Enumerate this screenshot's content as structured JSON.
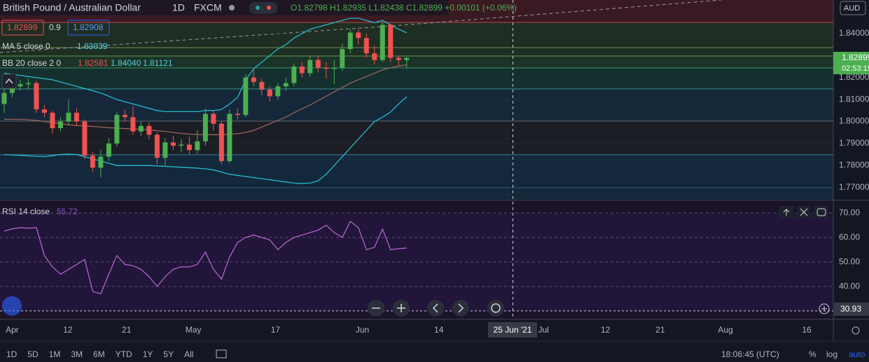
{
  "header": {
    "symbol": "British Pound / Australian Dollar",
    "interval": "1D",
    "exchange": "FXCM",
    "ohlc": "O1.82798 H1.82935 L1.82438 C1.82899 +0.00101 (+0.06%)",
    "bid": "1.82899",
    "spread": "0.9",
    "ask": "1.82908"
  },
  "legend": {
    "ma_name": "MA 5 close 0",
    "ma_value": "1.83039"
  },
  "price_axis": {
    "currency": "AUD",
    "last_price": "1.82899",
    "countdown": "02:53:15",
    "crosshair_value": "30.93"
  },
  "time_axis": {
    "crosshair_date": "25 Jun '21"
  },
  "bottom_bar": {
    "ranges": [
      "1D",
      "5D",
      "1M",
      "3M",
      "6M",
      "YTD",
      "1Y",
      "5Y",
      "All"
    ],
    "clock": "18:06:45 (UTC)",
    "percent": "%",
    "log": "log",
    "auto": "auto"
  },
  "chart_data": [
    {
      "type": "candlestick",
      "title": "British Pound / Australian Dollar",
      "x": [
        0,
        1,
        2,
        3,
        4,
        5,
        6,
        7,
        8,
        9,
        10,
        11,
        12,
        13,
        14,
        15,
        16,
        17,
        18,
        19,
        20,
        21,
        22,
        23,
        24,
        25,
        26,
        27,
        28,
        29,
        30,
        31,
        32,
        33,
        34,
        35,
        36,
        37,
        38,
        39,
        40,
        41,
        42,
        43,
        44,
        45,
        46,
        47,
        48,
        49,
        50
      ],
      "open": [
        1.808,
        1.813,
        1.816,
        1.817,
        1.8175,
        1.8055,
        1.804,
        1.797,
        1.8,
        1.804,
        1.8,
        1.7845,
        1.779,
        1.784,
        1.79,
        1.803,
        1.802,
        1.7955,
        1.798,
        1.794,
        1.7835,
        1.7905,
        1.789,
        1.7895,
        1.787,
        1.791,
        1.8035,
        1.799,
        1.782,
        1.8035,
        1.803,
        1.82,
        1.818,
        1.8145,
        1.8115,
        1.816,
        1.8175,
        1.825,
        1.822,
        1.828,
        1.8245,
        1.824,
        1.8245,
        1.833,
        1.8405,
        1.838,
        1.831,
        1.828,
        1.844,
        1.829,
        1.82798
      ],
      "high": [
        1.815,
        1.8185,
        1.819,
        1.8195,
        1.8185,
        1.8075,
        1.805,
        1.802,
        1.81,
        1.806,
        1.801,
        1.786,
        1.787,
        1.7925,
        1.8045,
        1.8055,
        1.807,
        1.8,
        1.7995,
        1.795,
        1.7925,
        1.7935,
        1.792,
        1.793,
        1.796,
        1.806,
        1.805,
        1.8,
        1.8055,
        1.806,
        1.8215,
        1.8235,
        1.8195,
        1.816,
        1.8175,
        1.82,
        1.8265,
        1.827,
        1.83,
        1.83,
        1.827,
        1.828,
        1.8355,
        1.842,
        1.842,
        1.84,
        1.8345,
        1.8455,
        1.8445,
        1.83,
        1.82935
      ],
      "low": [
        1.804,
        1.811,
        1.814,
        1.815,
        1.804,
        1.802,
        1.7945,
        1.7955,
        1.7985,
        1.798,
        1.783,
        1.777,
        1.7745,
        1.782,
        1.7885,
        1.8,
        1.794,
        1.7935,
        1.792,
        1.7805,
        1.78,
        1.787,
        1.786,
        1.785,
        1.7855,
        1.789,
        1.796,
        1.7805,
        1.781,
        1.801,
        1.802,
        1.816,
        1.812,
        1.809,
        1.81,
        1.814,
        1.816,
        1.82,
        1.8205,
        1.8225,
        1.8195,
        1.817,
        1.823,
        1.831,
        1.835,
        1.829,
        1.826,
        1.827,
        1.827,
        1.8255,
        1.82438
      ],
      "close": [
        1.813,
        1.816,
        1.817,
        1.8175,
        1.8055,
        1.804,
        1.797,
        1.8,
        1.804,
        1.8,
        1.7845,
        1.779,
        1.784,
        1.79,
        1.803,
        1.802,
        1.7955,
        1.798,
        1.794,
        1.7835,
        1.7905,
        1.789,
        1.7895,
        1.787,
        1.791,
        1.8035,
        1.799,
        1.782,
        1.8035,
        1.803,
        1.82,
        1.818,
        1.8145,
        1.8115,
        1.816,
        1.8175,
        1.825,
        1.822,
        1.828,
        1.8245,
        1.824,
        1.8245,
        1.833,
        1.8405,
        1.838,
        1.831,
        1.828,
        1.844,
        1.829,
        1.828,
        1.82899
      ],
      "up_color": "#4caf50",
      "down_color": "#ef5350",
      "series": [
        {
          "name": "BB 20 close 2 0",
          "color": "#a1665d",
          "band_color": "#26c6da",
          "basis": [
            1.801,
            1.801,
            1.801,
            1.8008,
            1.8005,
            1.8,
            1.7995,
            1.799,
            1.7985,
            1.7982,
            1.798,
            1.7978,
            1.7975,
            1.7972,
            1.797,
            1.7968,
            1.7966,
            1.7965,
            1.7962,
            1.7958,
            1.7955,
            1.795,
            1.7946,
            1.7943,
            1.7941,
            1.794,
            1.794,
            1.794,
            1.7942,
            1.7945,
            1.795,
            1.796,
            1.7975,
            1.799,
            1.8005,
            1.802,
            1.804,
            1.8058,
            1.8075,
            1.8095,
            1.8115,
            1.8135,
            1.8155,
            1.8175,
            1.819,
            1.8205,
            1.822,
            1.8235,
            1.8245,
            1.8252,
            1.82581
          ],
          "upper": [
            1.822,
            1.8215,
            1.821,
            1.8205,
            1.82,
            1.8195,
            1.819,
            1.818,
            1.817,
            1.816,
            1.815,
            1.814,
            1.813,
            1.8115,
            1.81,
            1.809,
            1.808,
            1.807,
            1.806,
            1.805,
            1.8045,
            1.8045,
            1.8045,
            1.8045,
            1.8045,
            1.805,
            1.805,
            1.8055,
            1.808,
            1.811,
            1.819,
            1.824,
            1.827,
            1.83,
            1.833,
            1.835,
            1.838,
            1.84,
            1.842,
            1.843,
            1.844,
            1.845,
            1.846,
            1.847,
            1.847,
            1.846,
            1.845,
            1.846,
            1.844,
            1.842,
            1.8404
          ],
          "lower": [
            1.785,
            1.7848,
            1.7846,
            1.7844,
            1.7842,
            1.784,
            1.7845,
            1.785,
            1.7852,
            1.785,
            1.784,
            1.783,
            1.782,
            1.781,
            1.78,
            1.78,
            1.78,
            1.78,
            1.78,
            1.7798,
            1.7796,
            1.7794,
            1.7792,
            1.779,
            1.7788,
            1.7785,
            1.778,
            1.777,
            1.776,
            1.7755,
            1.775,
            1.7745,
            1.774,
            1.7735,
            1.773,
            1.7725,
            1.772,
            1.7718,
            1.772,
            1.773,
            1.776,
            1.78,
            1.784,
            1.788,
            1.792,
            1.796,
            1.8,
            1.802,
            1.8043,
            1.808,
            1.81121
          ],
          "basis_label": "1.82581",
          "upper_label": "1.84040",
          "lower_label": "1.81121"
        }
      ],
      "xlim": [
        -0.52,
        103
      ],
      "xticks": [
        {
          "value": 1,
          "label": "Apr"
        },
        {
          "value": 7.9,
          "label": "12"
        },
        {
          "value": 15.2,
          "label": "21"
        },
        {
          "value": 23.5,
          "label": "May"
        },
        {
          "value": 33.7,
          "label": "17"
        },
        {
          "value": 44.5,
          "label": "Jun"
        },
        {
          "value": 54,
          "label": "14"
        },
        {
          "value": 67,
          "label": "Jul"
        },
        {
          "value": 74.7,
          "label": "12"
        },
        {
          "value": 81.5,
          "label": "21"
        },
        {
          "value": 89.6,
          "label": "Aug"
        },
        {
          "value": 99.7,
          "label": "16"
        }
      ],
      "ylim": [
        1.7645,
        1.8553
      ],
      "yticks": [
        {
          "value": 1.77,
          "label": "1.77000"
        },
        {
          "value": 1.78,
          "label": "1.78000"
        },
        {
          "value": 1.79,
          "label": "1.79000"
        },
        {
          "value": 1.8,
          "label": "1.80000"
        },
        {
          "value": 1.81,
          "label": "1.81000"
        },
        {
          "value": 1.82,
          "label": "1.82000"
        },
        {
          "value": 1.84,
          "label": "1.84000"
        }
      ],
      "crosshair_x": 63.2
    },
    {
      "type": "line",
      "title": "RSI 14 close",
      "series": [
        {
          "name": "RSI 14 close",
          "color": "#b86bd6",
          "values": [
            62.6,
            63.5,
            64,
            63.8,
            64,
            52.6,
            48,
            45,
            47,
            49,
            51,
            38,
            37,
            45,
            52.6,
            49,
            48.5,
            47,
            44,
            40,
            44,
            47,
            48,
            48,
            49,
            54,
            47,
            43,
            52,
            58,
            60,
            61,
            60,
            59,
            55,
            58,
            60,
            61,
            62,
            63,
            65,
            62,
            60,
            66.6,
            64,
            55,
            56,
            63.4,
            55,
            55.4,
            55.72
          ],
          "last_label": "55.72"
        }
      ],
      "ylim": [
        26.9,
        74.9
      ],
      "yticks": [
        {
          "value": 40,
          "label": "40.00"
        },
        {
          "value": 50,
          "label": "50.00"
        },
        {
          "value": 60,
          "label": "60.00"
        },
        {
          "value": 70,
          "label": "70.00"
        }
      ]
    }
  ]
}
